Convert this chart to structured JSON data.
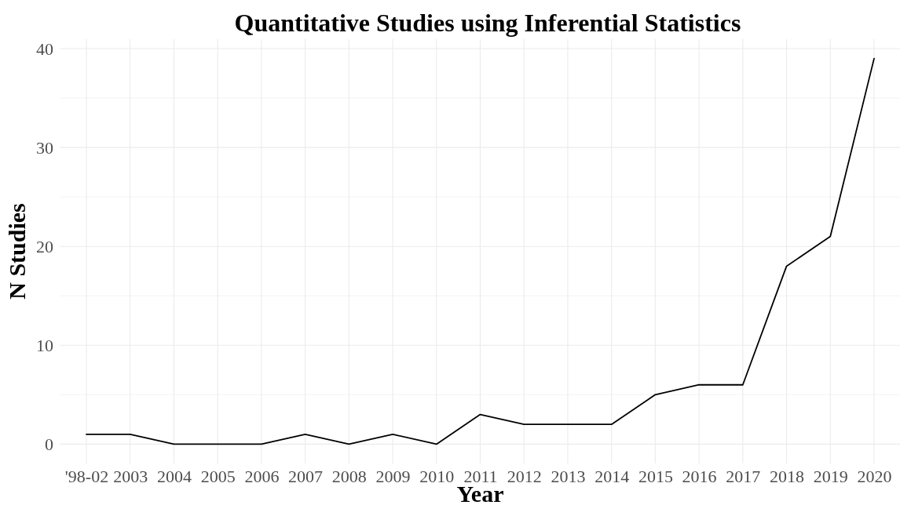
{
  "chart_data": {
    "type": "line",
    "title": "Quantitative Studies using Inferential Statistics",
    "xlabel": "Year",
    "ylabel": "N Studies",
    "categories": [
      "'98-02",
      "2003",
      "2004",
      "2005",
      "2006",
      "2007",
      "2008",
      "2009",
      "2010",
      "2011",
      "2012",
      "2013",
      "2014",
      "2015",
      "2016",
      "2017",
      "2018",
      "2019",
      "2020"
    ],
    "series": [
      {
        "color": "#000000",
        "values": [
          1,
          1,
          0,
          0,
          0,
          1,
          0,
          1,
          0,
          3,
          2,
          2,
          2,
          5,
          6,
          6,
          18,
          21,
          39
        ]
      }
    ],
    "ylim": [
      -1.95,
      40.95
    ],
    "yticks": [
      0,
      {
        "value": 5,
        "label": null
      },
      10,
      {
        "value": 15,
        "label": null
      },
      20,
      {
        "value": 25,
        "label": null
      },
      30,
      {
        "value": 35,
        "label": null
      },
      40
    ],
    "grid": true,
    "marker": "none",
    "line_style": "solid"
  }
}
